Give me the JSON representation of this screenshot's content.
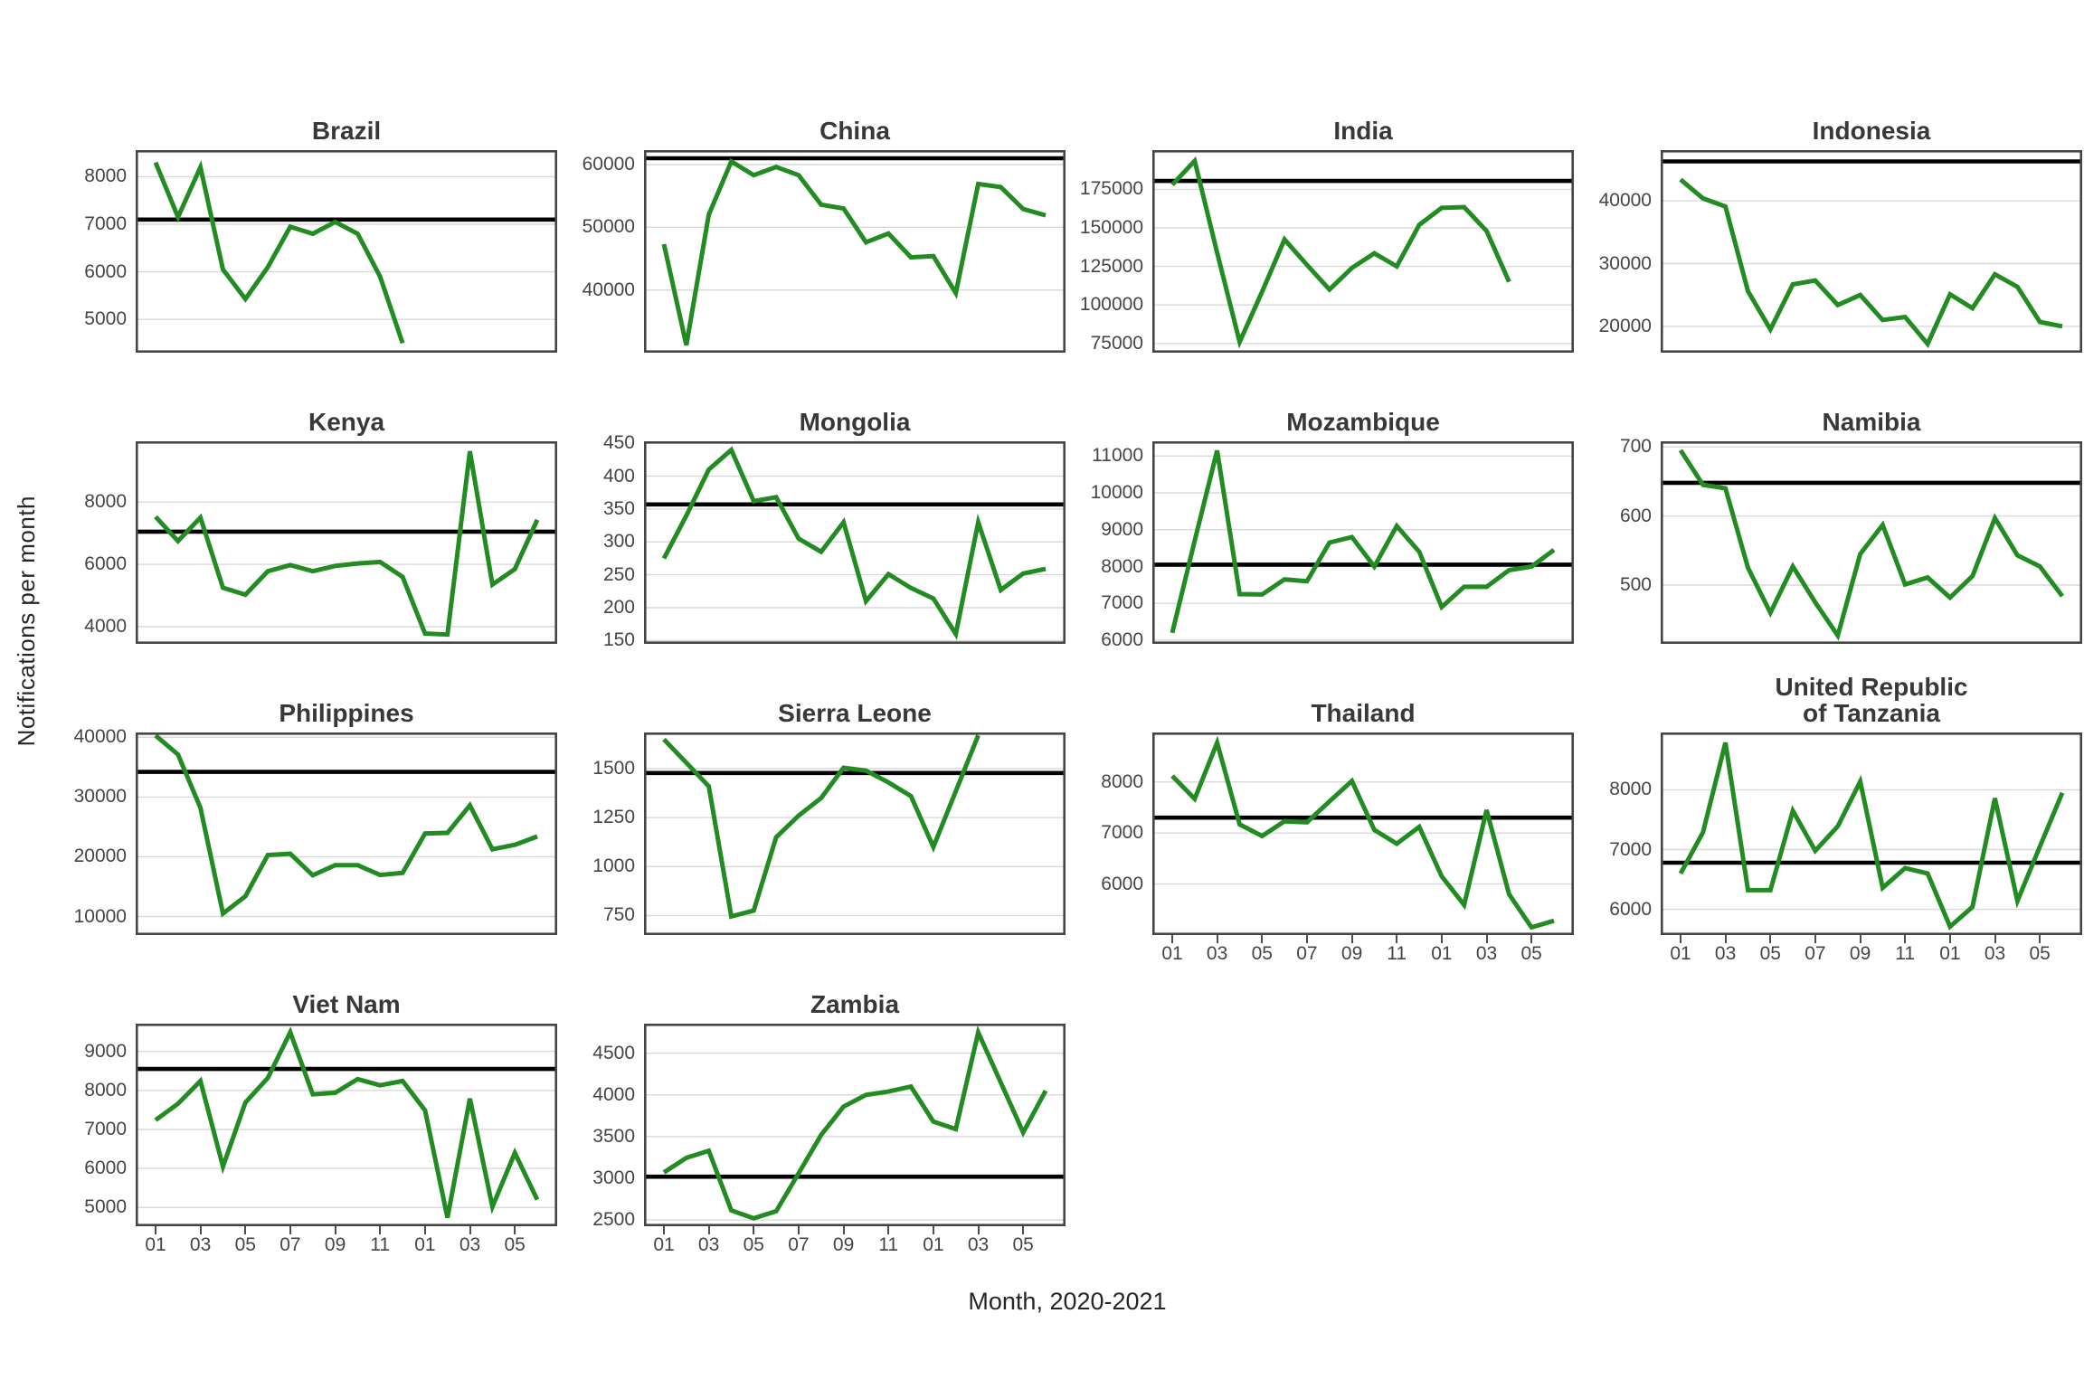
{
  "figure": {
    "ylabel": "Notifications per month",
    "xlabel": "Month, 2020-2021",
    "n_months": 18,
    "x_tick_labels": [
      "01",
      "03",
      "05",
      "07",
      "09",
      "11",
      "01",
      "03",
      "05"
    ],
    "x_tick_positions": [
      1,
      3,
      5,
      7,
      9,
      11,
      13,
      15,
      17
    ],
    "colors": {
      "line": "#228B22",
      "reference_line": "#000000",
      "panel_border": "#454545",
      "gridline": "#d9d9d9",
      "tick_text": "#454545",
      "title_text": "#383838"
    }
  },
  "chart_data": [
    {
      "id": "brazil",
      "type": "line",
      "title_lines": [
        "Brazil"
      ],
      "grid_row": 1,
      "grid_col": 1,
      "show_x_axis": false,
      "y_ticks": [
        5000,
        6000,
        7000,
        8000
      ],
      "ylim": [
        4300,
        8560
      ],
      "reference": 7100,
      "values": [
        8300,
        7150,
        8200,
        6050,
        5430,
        6100,
        6950,
        6800,
        7050,
        6800,
        5900,
        4500
      ]
    },
    {
      "id": "china",
      "type": "line",
      "title_lines": [
        "China"
      ],
      "grid_row": 1,
      "grid_col": 2,
      "show_x_axis": false,
      "y_ticks": [
        40000,
        50000,
        60000
      ],
      "ylim": [
        30000,
        62300
      ],
      "reference": 61000,
      "values": [
        47300,
        31200,
        52000,
        60500,
        58300,
        59600,
        58300,
        53600,
        53000,
        47600,
        49000,
        45200,
        45400,
        39500,
        56900,
        56400,
        52900,
        51900
      ]
    },
    {
      "id": "india",
      "type": "line",
      "title_lines": [
        "India"
      ],
      "grid_row": 1,
      "grid_col": 3,
      "show_x_axis": false,
      "y_ticks": [
        75000,
        100000,
        125000,
        150000,
        175000
      ],
      "ylim": [
        69000,
        200500
      ],
      "reference": 180500,
      "values": [
        178000,
        193500,
        134000,
        76000,
        108500,
        142500,
        126000,
        110000,
        124000,
        133500,
        125000,
        152000,
        163000,
        163500,
        148000,
        115000
      ]
    },
    {
      "id": "indonesia",
      "type": "line",
      "title_lines": [
        "Indonesia"
      ],
      "grid_row": 1,
      "grid_col": 4,
      "show_x_axis": false,
      "y_ticks": [
        20000,
        30000,
        40000
      ],
      "ylim": [
        15800,
        48100
      ],
      "reference": 46300,
      "values": [
        43400,
        40400,
        39100,
        25600,
        19500,
        26700,
        27300,
        23400,
        25000,
        21000,
        21500,
        17200,
        25100,
        22900,
        28300,
        26300,
        20700,
        20000
      ]
    },
    {
      "id": "kenya",
      "type": "line",
      "title_lines": [
        "Kenya"
      ],
      "grid_row": 2,
      "grid_col": 1,
      "show_x_axis": false,
      "y_ticks": [
        4000,
        6000,
        8000
      ],
      "ylim": [
        3450,
        9950
      ],
      "reference": 7050,
      "values": [
        7530,
        6750,
        7500,
        5250,
        5030,
        5780,
        5980,
        5780,
        5950,
        6030,
        6080,
        5600,
        3780,
        3750,
        9630,
        5350,
        5850,
        7430
      ]
    },
    {
      "id": "mongolia",
      "type": "line",
      "title_lines": [
        "Mongolia"
      ],
      "grid_row": 2,
      "grid_col": 2,
      "show_x_axis": false,
      "y_ticks": [
        150,
        200,
        250,
        300,
        350,
        400,
        450
      ],
      "ylim": [
        145,
        453
      ],
      "reference": 357,
      "values": [
        275,
        340,
        410,
        440,
        362,
        368,
        305,
        285,
        330,
        210,
        251,
        230,
        214,
        160,
        330,
        227,
        252,
        259
      ]
    },
    {
      "id": "mozambique",
      "type": "line",
      "title_lines": [
        "Mozambique"
      ],
      "grid_row": 2,
      "grid_col": 3,
      "show_x_axis": false,
      "y_ticks": [
        6000,
        7000,
        8000,
        9000,
        10000,
        11000
      ],
      "ylim": [
        5900,
        11400
      ],
      "reference": 8050,
      "values": [
        6200,
        8700,
        11150,
        7250,
        7240,
        7650,
        7600,
        8650,
        8800,
        8000,
        9100,
        8400,
        6900,
        7450,
        7450,
        7900,
        8000,
        8450
      ]
    },
    {
      "id": "namibia",
      "type": "line",
      "title_lines": [
        "Namibia"
      ],
      "grid_row": 2,
      "grid_col": 4,
      "show_x_axis": false,
      "y_ticks": [
        500,
        600,
        700
      ],
      "ylim": [
        415,
        708
      ],
      "reference": 648,
      "values": [
        695,
        645,
        640,
        525,
        460,
        527,
        475,
        427,
        545,
        587,
        501,
        511,
        482,
        513,
        597,
        543,
        527,
        484
      ]
    },
    {
      "id": "philippines",
      "type": "line",
      "title_lines": [
        "Philippines"
      ],
      "grid_row": 3,
      "grid_col": 1,
      "show_x_axis": false,
      "y_ticks": [
        10000,
        20000,
        30000,
        40000
      ],
      "ylim": [
        6900,
        40800
      ],
      "reference": 34200,
      "values": [
        40300,
        37100,
        28200,
        10500,
        13400,
        20300,
        20500,
        16900,
        18600,
        18600,
        16950,
        17300,
        23900,
        24000,
        28600,
        21250,
        22000,
        23400
      ]
    },
    {
      "id": "sierra-leone",
      "type": "line",
      "title_lines": [
        "Sierra Leone"
      ],
      "grid_row": 3,
      "grid_col": 2,
      "show_x_axis": false,
      "y_ticks": [
        750,
        1000,
        1250,
        1500
      ],
      "ylim": [
        650,
        1685
      ],
      "reference": 1478,
      "values": [
        1650,
        1530,
        1410,
        745,
        775,
        1150,
        1260,
        1350,
        1505,
        1490,
        1430,
        1360,
        1100,
        1385,
        1670
      ]
    },
    {
      "id": "thailand",
      "type": "line",
      "title_lines": [
        "Thailand"
      ],
      "grid_row": 3,
      "grid_col": 3,
      "show_x_axis": true,
      "y_ticks": [
        6000,
        7000,
        8000
      ],
      "ylim": [
        5000,
        8970
      ],
      "reference": 7300,
      "values": [
        8120,
        7670,
        8770,
        7170,
        6940,
        7230,
        7210,
        7620,
        8020,
        7060,
        6790,
        7120,
        6150,
        5590,
        7450,
        5800,
        5150,
        5280
      ]
    },
    {
      "id": "tanzania",
      "type": "line",
      "title_lines": [
        "United Republic",
        "of Tanzania"
      ],
      "grid_row": 3,
      "grid_col": 4,
      "show_x_axis": true,
      "y_ticks": [
        6000,
        7000,
        8000
      ],
      "ylim": [
        5570,
        8960
      ],
      "reference": 6780,
      "values": [
        6600,
        7290,
        8790,
        6320,
        6320,
        7650,
        6980,
        7390,
        8140,
        6360,
        6690,
        6600,
        5710,
        6040,
        7860,
        6140,
        7050,
        7950
      ]
    },
    {
      "id": "viet-nam",
      "type": "line",
      "title_lines": [
        "Viet Nam"
      ],
      "grid_row": 4,
      "grid_col": 1,
      "show_x_axis": true,
      "y_ticks": [
        5000,
        6000,
        7000,
        8000,
        9000
      ],
      "ylim": [
        4520,
        9710
      ],
      "reference": 8550,
      "values": [
        7240,
        7660,
        8240,
        6050,
        7690,
        8320,
        9490,
        7900,
        7940,
        8290,
        8130,
        8240,
        7490,
        4740,
        7790,
        5020,
        6400,
        5200
      ]
    },
    {
      "id": "zambia",
      "type": "line",
      "title_lines": [
        "Zambia"
      ],
      "grid_row": 4,
      "grid_col": 2,
      "show_x_axis": true,
      "y_ticks": [
        2500,
        3000,
        3500,
        4000,
        4500
      ],
      "ylim": [
        2425,
        4855
      ],
      "reference": 3020,
      "values": [
        3070,
        3245,
        3330,
        2615,
        2520,
        2605,
        3060,
        3520,
        3860,
        4000,
        4040,
        4100,
        3680,
        3590,
        4750,
        4150,
        3550,
        4050
      ]
    }
  ]
}
